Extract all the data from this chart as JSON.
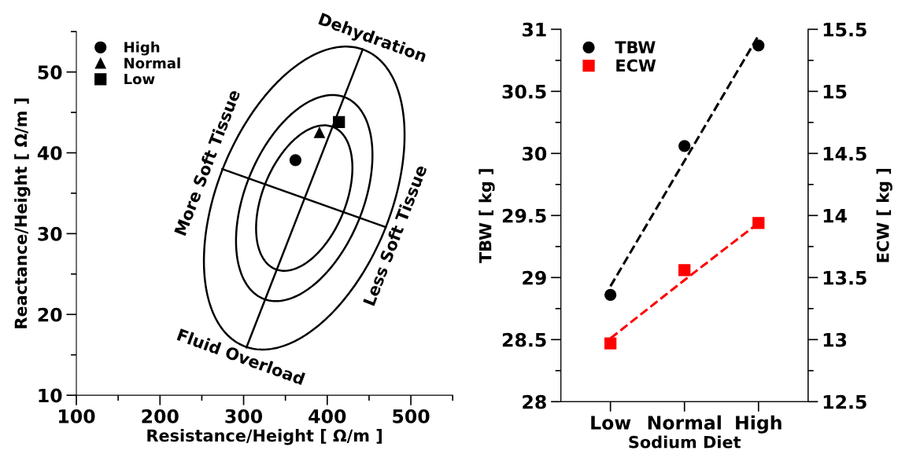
{
  "chart_data": [
    {
      "type": "scatter",
      "xlabel": "Resistance/Height [ Ω/m ]",
      "ylabel": "Reactance/Height [ Ω/m ]",
      "xlim": [
        100,
        550
      ],
      "ylim": [
        10,
        55
      ],
      "xticks": [
        100,
        200,
        300,
        400,
        500
      ],
      "yticks": [
        10,
        20,
        30,
        40,
        50
      ],
      "legend": "top left",
      "grid": false,
      "series": [
        {
          "type": "line",
          "color": "#000000",
          "marker": "none",
          "line_style": "solid",
          "x": [
            303.3,
            442.4
          ],
          "values": [
            15.9,
            52.8
          ]
        },
        {
          "type": "line",
          "color": "#000000",
          "marker": "none",
          "line_style": "solid",
          "x": [
            274.3,
            470
          ],
          "values": [
            38.0,
            30.8
          ]
        },
        {
          "name": "High",
          "color": "#000000",
          "marker": "circle",
          "x": [
            362
          ],
          "values": [
            39.1
          ]
        },
        {
          "name": "Normal",
          "color": "#000000",
          "marker": "triangle",
          "x": [
            390.7
          ],
          "values": [
            42.5
          ]
        },
        {
          "name": "Low",
          "color": "#000000",
          "marker": "square",
          "x": [
            414
          ],
          "values": [
            43.8
          ]
        }
      ],
      "annotations": [
        "Dehydration",
        "Fluid Overload",
        "More Soft Tissue",
        "Less Soft Tissue"
      ]
    },
    {
      "type": "line",
      "xlabel": "Sodium Diet",
      "ylabel": "TBW [ kg ]",
      "y2label": "ECW [ kg ]",
      "categories": [
        "Low",
        "Normal",
        "High"
      ],
      "ylim": [
        28,
        31
      ],
      "yticks": [
        28,
        28.5,
        29,
        29.5,
        30,
        30.5,
        31
      ],
      "y2lim": [
        12.5,
        15.5
      ],
      "y2ticks": [
        12.5,
        13,
        13.5,
        14,
        14.5,
        15,
        15.5
      ],
      "legend": "top left",
      "grid": false,
      "series": [
        {
          "type": "scatter",
          "name": "TBW",
          "color": "#000000",
          "marker": "circle",
          "values": [
            28.86,
            30.06,
            30.87
          ]
        },
        {
          "type": "scatter",
          "name": "ECW",
          "color": "#ff0000",
          "marker": "square",
          "axis": "y2",
          "values": [
            12.97,
            13.56,
            13.94
          ]
        },
        {
          "color": "#000000",
          "marker": "none",
          "line_style": "dashed",
          "values": [
            28.93,
            29.94,
            30.95
          ]
        },
        {
          "color": "#ff0000",
          "marker": "none",
          "line_style": "dashed",
          "axis": "y2",
          "values": [
            13.01,
            13.48,
            13.94
          ]
        }
      ]
    }
  ]
}
